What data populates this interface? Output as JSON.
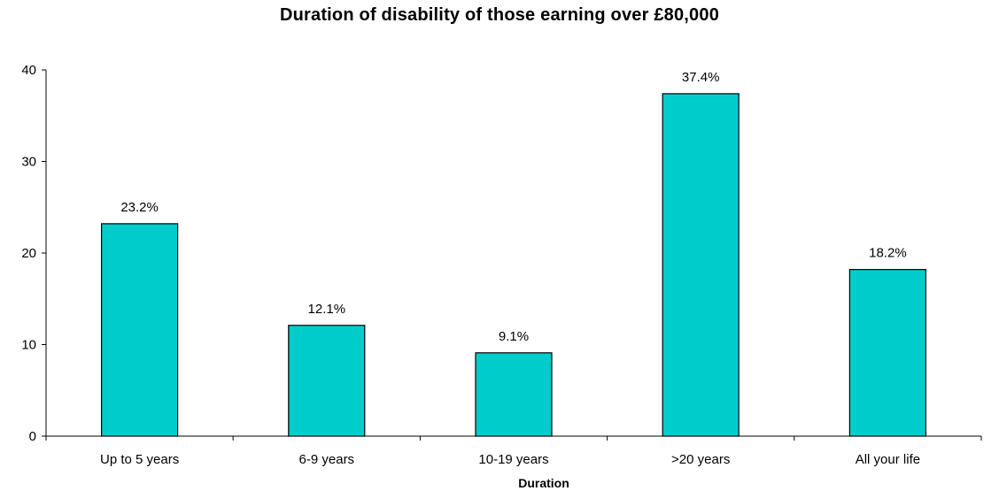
{
  "chart_data": {
    "type": "bar",
    "title": "Duration of disability of those earning over £80,000",
    "xlabel": "Duration",
    "ylabel": "",
    "categories": [
      "Up to 5 years",
      "6-9 years",
      "10-19 years",
      ">20 years",
      "All your life"
    ],
    "values": [
      23.2,
      12.1,
      9.1,
      37.4,
      18.2
    ],
    "data_labels": [
      "23.2%",
      "12.1%",
      "9.1%",
      "37.4%",
      "18.2%"
    ],
    "ylim": [
      0,
      40
    ],
    "yticks": [
      "0",
      "10",
      "20",
      "30",
      "40"
    ],
    "grid": false,
    "legend": "none",
    "colors": {
      "bar_fill": "#00CCCC",
      "bar_stroke": "#000000",
      "axis": "#000000"
    }
  }
}
